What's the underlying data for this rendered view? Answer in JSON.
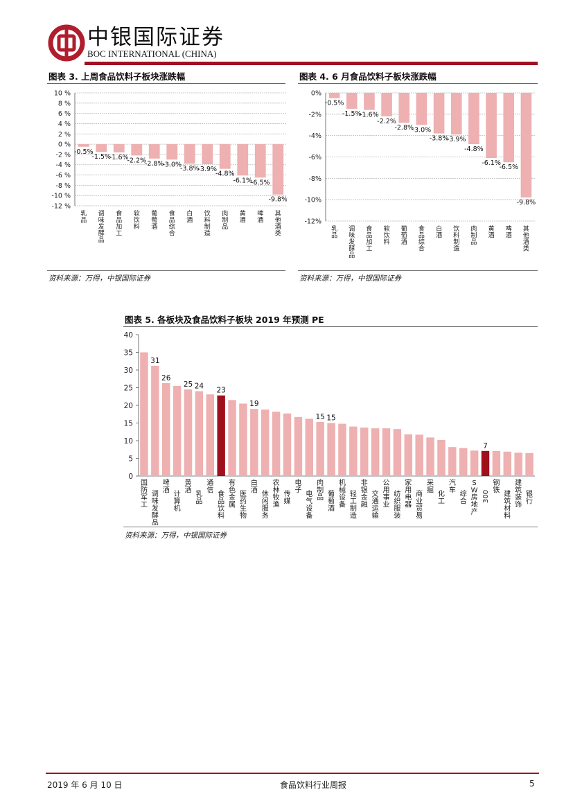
{
  "header": {
    "brand_cn": "中银国际证券",
    "brand_en": "BOC INTERNATIONAL (CHINA)",
    "logo_color": "#b01e2e"
  },
  "colors": {
    "bar": "#eeb0b0",
    "highlight": "#a0101c",
    "accent": "#a01020"
  },
  "figure3": {
    "title": "图表 3. 上周食品饮料子板块涨跌幅",
    "source": "资料来源：万得，中银国际证券",
    "chart_data": {
      "type": "bar",
      "categories": [
        "乳品",
        "调味发酵品",
        "食品加工",
        "软饮料",
        "葡萄酒",
        "食品综合",
        "白酒",
        "饮料制造",
        "肉制品",
        "黄酒",
        "啤酒",
        "其他酒类"
      ],
      "values": [
        -0.5,
        -1.5,
        -1.6,
        -2.2,
        -2.8,
        -3.0,
        -3.8,
        -3.9,
        -4.8,
        -6.1,
        -6.5,
        -9.8
      ],
      "data_labels": [
        "-0.5%",
        "-1.5%",
        "-1.6%",
        "-2.2%",
        "-2.8%",
        "-3.0%",
        "-3.8%",
        "-3.9%",
        "-4.8%",
        "-6.1%",
        "-6.5%",
        "-9.8%"
      ],
      "y_ticks": [
        "10 %",
        "8 %",
        "6 %",
        "4 %",
        "2 %",
        "0 %",
        "-2 %",
        "-4 %",
        "-6 %",
        "-8 %",
        "-10 %",
        "-12 %"
      ],
      "ylim": [
        -12,
        10
      ],
      "grid": true
    }
  },
  "figure4": {
    "title": "图表 4. 6 月食品饮料子板块涨跌幅",
    "source": "资料来源：万得，中银国际证券",
    "chart_data": {
      "type": "bar",
      "categories": [
        "乳品",
        "调味发酵品",
        "食品加工",
        "软饮料",
        "葡萄酒",
        "食品综合",
        "白酒",
        "饮料制造",
        "肉制品",
        "黄酒",
        "啤酒",
        "其他酒类"
      ],
      "values": [
        -0.5,
        -1.5,
        -1.6,
        -2.2,
        -2.8,
        -3.0,
        -3.8,
        -3.9,
        -4.8,
        -6.1,
        -6.5,
        -9.8
      ],
      "data_labels": [
        "-0.5%",
        "-1.5%",
        "-1.6%",
        "-2.2%",
        "-2.8%",
        "-3.0%",
        "-3.8%",
        "-3.9%",
        "-4.8%",
        "-6.1%",
        "-6.5%",
        "-9.8%"
      ],
      "y_ticks": [
        "0%",
        "-2%",
        "-4%",
        "-6%",
        "-8%",
        "-10%",
        "-12%"
      ],
      "ylim": [
        -12,
        0
      ],
      "grid": true
    }
  },
  "figure5": {
    "title": "图表 5. 各板块及食品饮料子板块 2019 年预测 PE",
    "source": "资料来源：万得，中银国际证券",
    "chart_data": {
      "type": "bar",
      "categories": [
        "国防军工",
        "调味发酵品",
        "啤酒",
        "计算机",
        "黄酒",
        "乳品",
        "通信",
        "食品饮料",
        "有色金属",
        "医药生物",
        "白酒",
        "休闲服务",
        "农林牧渔",
        "传媒",
        "电子",
        "电气设备",
        "肉制品",
        "葡萄酒",
        "机械设备",
        "轻工制造",
        "非银金融",
        "交通运输",
        "公用事业",
        "纺织服装",
        "家用电器",
        "商业贸易",
        "采掘",
        "化工",
        "汽车",
        "综合",
        "SW房地产",
        "300",
        "钢铁",
        "建筑材料",
        "建筑装饰",
        "银行"
      ],
      "values": [
        35,
        31.2,
        26.3,
        25.5,
        24.5,
        24,
        23.1,
        22.8,
        21.5,
        20.5,
        19,
        18.8,
        18.2,
        17.7,
        16.7,
        16.2,
        15.3,
        15,
        14.8,
        14,
        13.7,
        13.5,
        13.5,
        13.3,
        11.8,
        11.7,
        10.9,
        10.2,
        8.2,
        7.9,
        7.2,
        7.1,
        7.1,
        6.9,
        6.6,
        6.5
      ],
      "data_labels": [
        "",
        "31",
        "26",
        "",
        "25",
        "24",
        "",
        "23",
        "",
        "",
        "19",
        "",
        "",
        "",
        "",
        "",
        "15",
        "15",
        "",
        "",
        "",
        "",
        "",
        "",
        "",
        "",
        "",
        "",
        "",
        "",
        "",
        "7",
        "",
        "",
        "",
        ""
      ],
      "highlight": [
        "食品饮料",
        "300"
      ],
      "y_ticks": [
        "40",
        "35",
        "30",
        "25",
        "20",
        "15",
        "10",
        "5",
        "0"
      ],
      "ylim": [
        0,
        40
      ],
      "grid": false
    }
  },
  "footer": {
    "date": "2019 年 6 月 10 日",
    "title": "食品饮料行业周报",
    "page": "5"
  }
}
